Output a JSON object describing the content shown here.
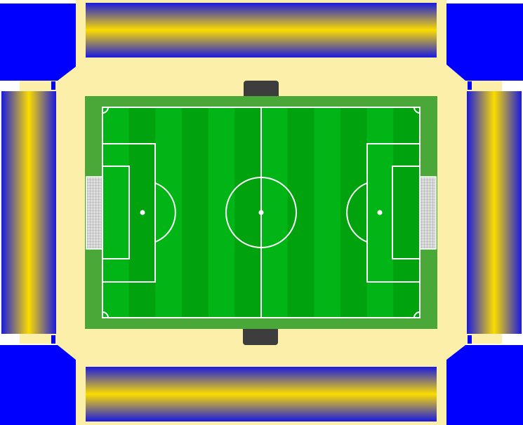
{
  "colors": {
    "background": "#ffffff",
    "concourse": "#fcefaa",
    "corner_block": "#0000ff",
    "stand_edge": "#1a1adf",
    "stand_center": "#fbdc00",
    "pitch_surround": "#4aa838",
    "stripe_light": "#00b515",
    "stripe_dark": "#00a20e",
    "line": "#ffffff",
    "dugout": "#3d3d3d",
    "goal_net": "#dddddd"
  },
  "pitch": {
    "stripe_count": 12
  }
}
